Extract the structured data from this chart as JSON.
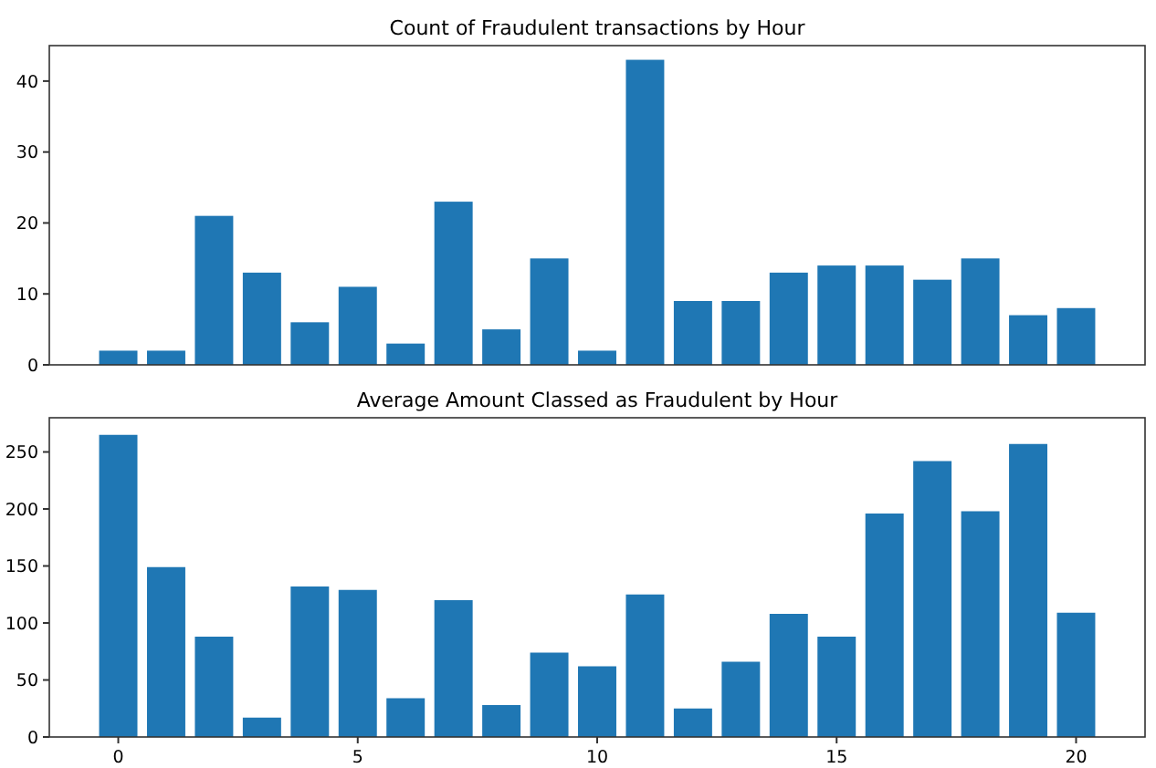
{
  "chart_data": [
    {
      "type": "bar",
      "title": "Count of Fraudulent transactions by Hour",
      "categories": [
        null,
        null,
        null,
        null,
        null,
        null,
        null,
        null,
        null,
        null,
        null,
        null,
        null,
        null,
        null,
        null,
        null,
        null,
        null,
        null,
        null
      ],
      "values": [
        2,
        2,
        21,
        13,
        6,
        11,
        3,
        23,
        5,
        15,
        2,
        43,
        9,
        9,
        13,
        14,
        14,
        12,
        15,
        7,
        8
      ],
      "color": "#1f77b4",
      "ylim": [
        0,
        45
      ],
      "yticks": [
        0,
        10,
        20,
        30,
        40
      ],
      "tick_labels": "y"
    },
    {
      "type": "bar",
      "title": "Average Amount Classed as Fraudulent by Hour",
      "x": [
        0,
        1,
        2,
        3,
        4,
        5,
        6,
        7,
        8,
        9,
        10,
        11,
        12,
        13,
        14,
        15,
        16,
        17,
        18,
        19,
        20
      ],
      "values": [
        265,
        149,
        88,
        17,
        132,
        129,
        34,
        120,
        28,
        74,
        62,
        125,
        25,
        66,
        108,
        88,
        196,
        242,
        198,
        257,
        109
      ],
      "color": "#1f77b4",
      "xlim": [
        -1.44,
        21.44
      ],
      "xticks": [
        0,
        5,
        10,
        15,
        20
      ],
      "ylim": [
        0,
        280
      ],
      "yticks": [
        0,
        50,
        100,
        150,
        200,
        250
      ]
    }
  ]
}
